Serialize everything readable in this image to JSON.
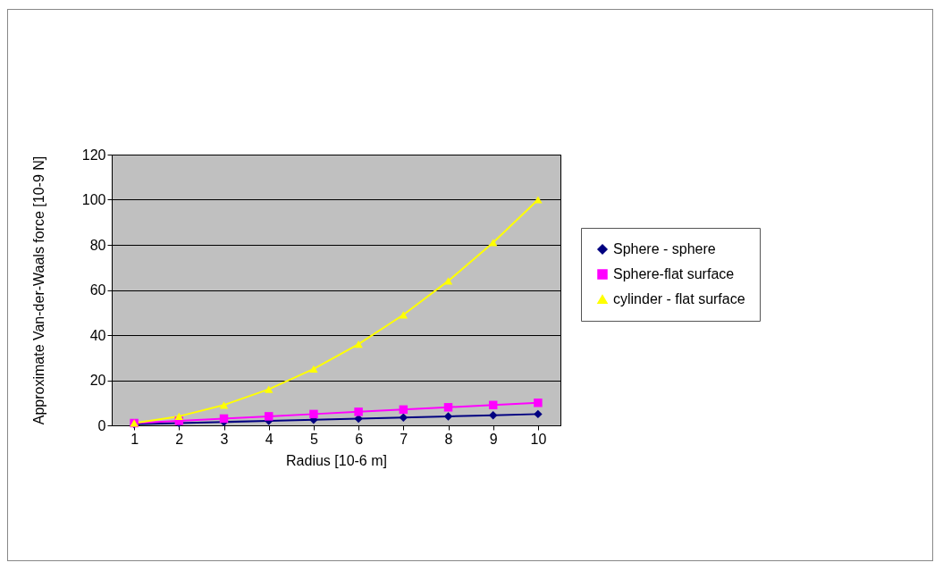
{
  "chart_data": {
    "type": "line",
    "xlabel": "Radius [10-6 m]",
    "ylabel": "Approximate Van-der-Waals force [10-9 N]",
    "categories": [
      "1",
      "2",
      "3",
      "4",
      "5",
      "6",
      "7",
      "8",
      "9",
      "10"
    ],
    "ylim": [
      0,
      120
    ],
    "yticks": [
      0,
      20,
      40,
      60,
      80,
      100,
      120
    ],
    "grid": "y",
    "legend": "right",
    "series": [
      {
        "name": "Sphere - sphere",
        "color": "#000080",
        "marker": "diamond",
        "values": [
          0.5,
          1,
          1.5,
          2,
          2.5,
          3,
          3.5,
          4,
          4.5,
          5
        ]
      },
      {
        "name": "Sphere-flat surface",
        "color": "#ff00ff",
        "marker": "square",
        "values": [
          1,
          2,
          3,
          4,
          5,
          6,
          7,
          8,
          9,
          10
        ]
      },
      {
        "name": "cylinder - flat surface",
        "color": "#ffff00",
        "marker": "triangle",
        "values": [
          1,
          4,
          9,
          16,
          25,
          36,
          49,
          64,
          81,
          100
        ]
      }
    ]
  }
}
